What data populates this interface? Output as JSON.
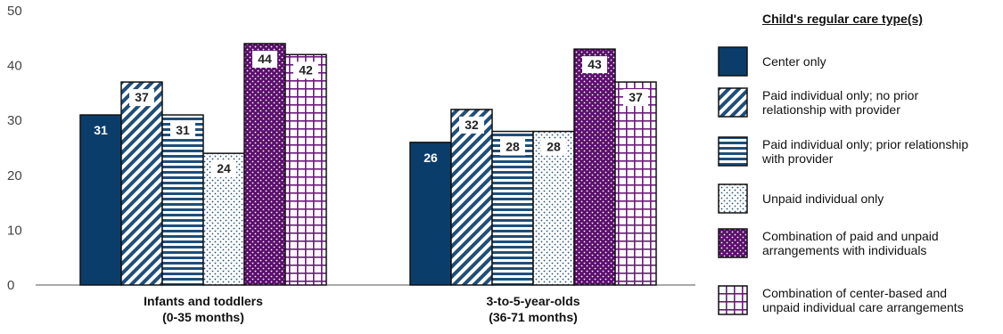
{
  "chart_data": {
    "type": "bar",
    "title": "",
    "xlabel": "",
    "ylabel": "",
    "ylim": [
      0,
      50
    ],
    "yticks": [
      "0",
      "10",
      "20",
      "30",
      "40",
      "50"
    ],
    "grid": false,
    "legend_placement": "right",
    "legend_title": "Child's regular care type(s)",
    "categories": [
      [
        "Infants and toddlers",
        "(0-35 months)"
      ],
      [
        "3-to-5-year-olds",
        "(36-71 months)"
      ]
    ],
    "series": [
      {
        "name": "Center only",
        "values": [
          31,
          26
        ],
        "fill": "solid",
        "color": "#0b3d6b"
      },
      {
        "name": "Paid individual only; no prior relationship with provider",
        "values": [
          37,
          32
        ],
        "fill": "diagonal",
        "color": "#1f4e79"
      },
      {
        "name": "Paid individual only;  prior relationship with provider",
        "values": [
          31,
          28
        ],
        "fill": "horizontal",
        "color": "#1f4e79"
      },
      {
        "name": "Unpaid individual only",
        "values": [
          24,
          28
        ],
        "fill": "dots",
        "color": "#1f4e79"
      },
      {
        "name": "Combination of paid and unpaid arrangements with individuals",
        "values": [
          44,
          43
        ],
        "fill": "dark-dots",
        "color": "#5a0f6b"
      },
      {
        "name": "Combination of center-based and unpaid individual care arrangements",
        "values": [
          42,
          37
        ],
        "fill": "grid",
        "color": "#6a1b7a"
      }
    ]
  },
  "colors": {
    "navy": "#0b3d6b",
    "blue_pattern": "#1f4e79",
    "purple": "#5a0f6b",
    "purple_grid": "#6a1b7a"
  }
}
